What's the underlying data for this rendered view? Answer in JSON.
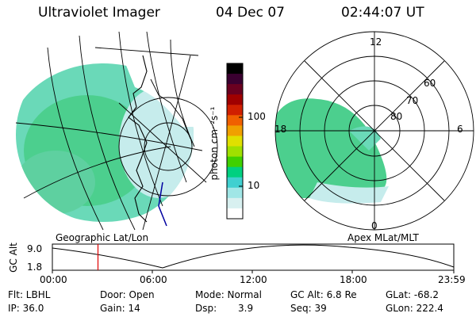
{
  "header": {
    "instrument": "Ultraviolet Imager",
    "date": "04 Dec 07",
    "time": "02:44:07 UT"
  },
  "colorbar": {
    "unit_label": "photon cm⁻²s⁻¹",
    "ticks": [
      "100",
      "10"
    ],
    "colors": [
      "#000000",
      "#3a0030",
      "#6a0020",
      "#a00000",
      "#d02000",
      "#f06000",
      "#f0a000",
      "#e0e000",
      "#a0e000",
      "#40d000",
      "#00d080",
      "#40d0d0",
      "#a0e6e6",
      "#d8f0f0",
      "#ffffff"
    ]
  },
  "geographic_panel": {
    "caption": "Geographic Lat/Lon"
  },
  "magnetic_panel": {
    "caption": "Apex MLat/MLT",
    "lat_labels": [
      "80",
      "70",
      "60"
    ],
    "mlt_labels": [
      "12",
      "18",
      "6",
      "0"
    ]
  },
  "altitude_plot": {
    "ylabel": "GC Alt",
    "y_ticks": [
      "9.0",
      "1.8"
    ],
    "x_ticks": [
      "00:00",
      "06:00",
      "12:00",
      "18:00",
      "23:59"
    ],
    "current_time_fraction": 0.1136
  },
  "info": {
    "flt": "Flt: LBHL",
    "door": "Door: Open",
    "mode": "Mode: Normal",
    "gcalt": "GC Alt: 6.8 Re",
    "glat": "GLat: -68.2",
    "ip": "IP: 36.0",
    "gain": "Gain: 14",
    "dsp_label": "Dsp:",
    "dsp_value": "3.9",
    "seq": "Seq: 39",
    "glon": "GLon: 222.4"
  }
}
